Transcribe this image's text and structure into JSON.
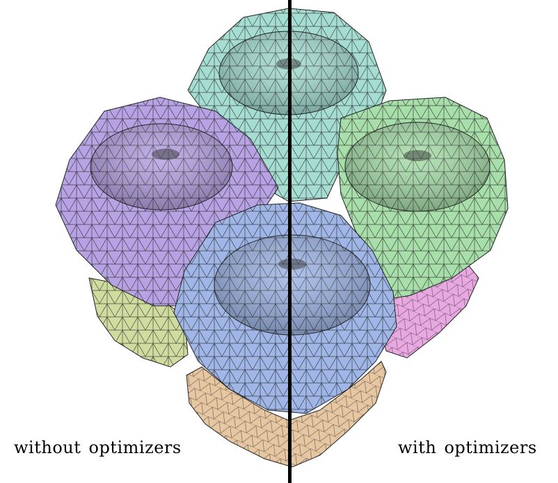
{
  "captions": {
    "left": "without optimizers",
    "right": "with optimizers"
  },
  "parts": [
    {
      "name": "teal-cylinder",
      "color": "#a5ddd2"
    },
    {
      "name": "purple-cylinder",
      "color": "#b7a3e3"
    },
    {
      "name": "green-cylinder",
      "color": "#a8deaa"
    },
    {
      "name": "blue-cylinder",
      "color": "#9fb6e6"
    },
    {
      "name": "olive-part",
      "color": "#cfdca0"
    },
    {
      "name": "pink-part",
      "color": "#e8a8e0"
    },
    {
      "name": "tan-base",
      "color": "#e7c7a2"
    }
  ],
  "divider_color": "#000000"
}
